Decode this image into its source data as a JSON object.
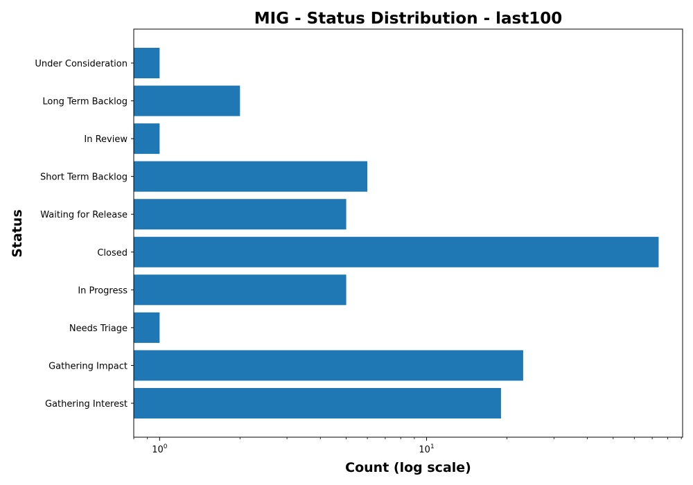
{
  "chart_data": {
    "type": "bar",
    "orientation": "horizontal",
    "title": "MIG - Status Distribution - last100",
    "xlabel": "Count (log scale)",
    "ylabel": "Status",
    "x_scale": "log",
    "xlim": [
      0.8,
      91
    ],
    "x_ticks": [
      {
        "value": 1,
        "base": "10",
        "exponent": "0"
      },
      {
        "value": 10,
        "base": "10",
        "exponent": "1"
      }
    ],
    "grid": false,
    "bar_color": "#1f77b4",
    "categories": [
      "Under Consideration",
      "Long Term Backlog",
      "In Review",
      "Short Term Backlog",
      "Waiting for Release",
      "Closed",
      "In Progress",
      "Needs Triage",
      "Gathering Impact",
      "Gathering Interest"
    ],
    "values": [
      1,
      2,
      1,
      6,
      5,
      74,
      5,
      1,
      23,
      19
    ]
  }
}
